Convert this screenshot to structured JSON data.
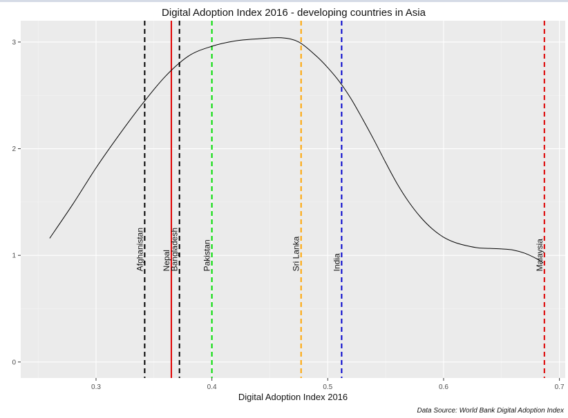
{
  "chart_data": {
    "type": "line",
    "title": "Digital Adoption Index 2016 - developing countries in Asia",
    "xlabel": "Digital Adoption Index 2016",
    "ylabel": "",
    "caption": "Data Source: World Bank Digital Adoption Index",
    "xlim": [
      0.235,
      0.705
    ],
    "ylim": [
      -0.15,
      3.2
    ],
    "x_ticks": [
      0.3,
      0.4,
      0.5,
      0.6,
      0.7
    ],
    "x_tick_labels": [
      "0.3",
      "0.4",
      "0.5",
      "0.6",
      "0.7"
    ],
    "y_ticks": [
      0,
      1,
      2,
      3
    ],
    "y_tick_labels": [
      "0",
      "1",
      "2",
      "3"
    ],
    "grid": true,
    "series": [
      {
        "color": "#000000",
        "x": [
          0.26,
          0.28,
          0.3,
          0.32,
          0.34,
          0.36,
          0.38,
          0.4,
          0.42,
          0.44,
          0.46,
          0.475,
          0.49,
          0.5,
          0.51,
          0.52,
          0.53,
          0.54,
          0.55,
          0.56,
          0.57,
          0.58,
          0.59,
          0.6,
          0.61,
          0.62,
          0.63,
          0.64,
          0.65,
          0.66,
          0.67,
          0.68,
          0.686
        ],
        "y": [
          1.16,
          1.48,
          1.82,
          2.13,
          2.42,
          2.68,
          2.87,
          2.96,
          3.01,
          3.03,
          3.04,
          3.0,
          2.87,
          2.76,
          2.63,
          2.47,
          2.28,
          2.08,
          1.87,
          1.67,
          1.5,
          1.36,
          1.25,
          1.17,
          1.12,
          1.09,
          1.07,
          1.065,
          1.06,
          1.05,
          1.02,
          0.97,
          0.93
        ]
      }
    ],
    "vlines": [
      {
        "label": "Afghanistan",
        "x": 0.342,
        "color": "#000000",
        "dashed": true
      },
      {
        "label": "Nepal",
        "x": 0.365,
        "color": "#e00000",
        "dashed": false
      },
      {
        "label": "Bangladesh",
        "x": 0.372,
        "color": "#000000",
        "dashed": true
      },
      {
        "label": "Pakistan",
        "x": 0.4,
        "color": "#00dd00",
        "dashed": true
      },
      {
        "label": "Sri Lanka",
        "x": 0.477,
        "color": "#ffa500",
        "dashed": true
      },
      {
        "label": "India",
        "x": 0.512,
        "color": "#0000cc",
        "dashed": true
      },
      {
        "label": "Malaysia",
        "x": 0.687,
        "color": "#dd0000",
        "dashed": true
      }
    ]
  }
}
